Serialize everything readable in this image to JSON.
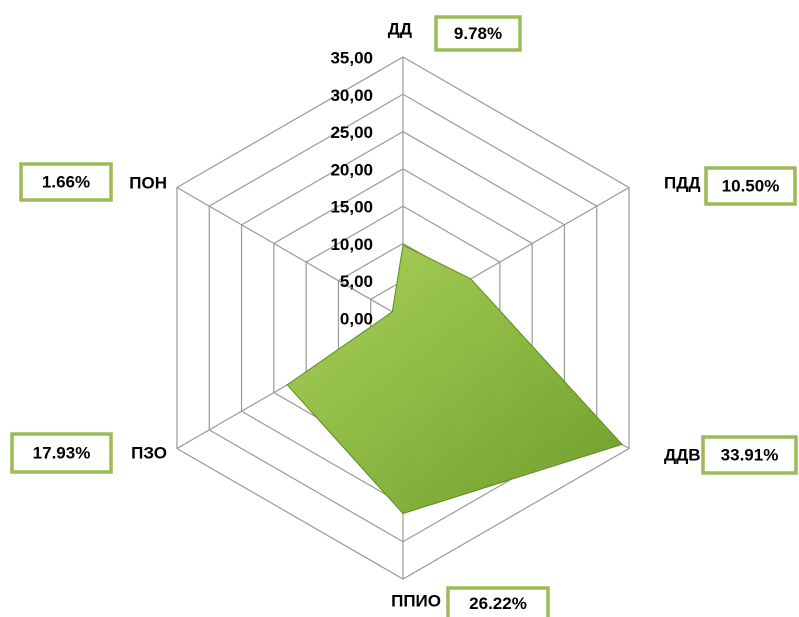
{
  "chart_data": {
    "type": "radar",
    "categories": [
      "ДД",
      "ПДД",
      "ДДВ",
      "ППИО",
      "ПЗО",
      "ПОН"
    ],
    "values": [
      9.78,
      10.5,
      33.91,
      26.22,
      17.93,
      1.66
    ],
    "value_labels": [
      "9.78%",
      "10.50%",
      "33.91%",
      "26.22%",
      "17.93%",
      "1.66%"
    ],
    "color": "#8dc043",
    "ylim": [
      0,
      35
    ],
    "yticks": [
      {
        "value": 0,
        "label": "0,00"
      },
      {
        "value": 5,
        "label": "5,00"
      },
      {
        "value": 10,
        "label": "10,00"
      },
      {
        "value": 15,
        "label": "15,00"
      },
      {
        "value": 20,
        "label": "20,00"
      },
      {
        "value": 25,
        "label": "25,00"
      },
      {
        "value": 30,
        "label": "30,00"
      },
      {
        "value": 35,
        "label": "35,00"
      }
    ],
    "grid": true
  }
}
